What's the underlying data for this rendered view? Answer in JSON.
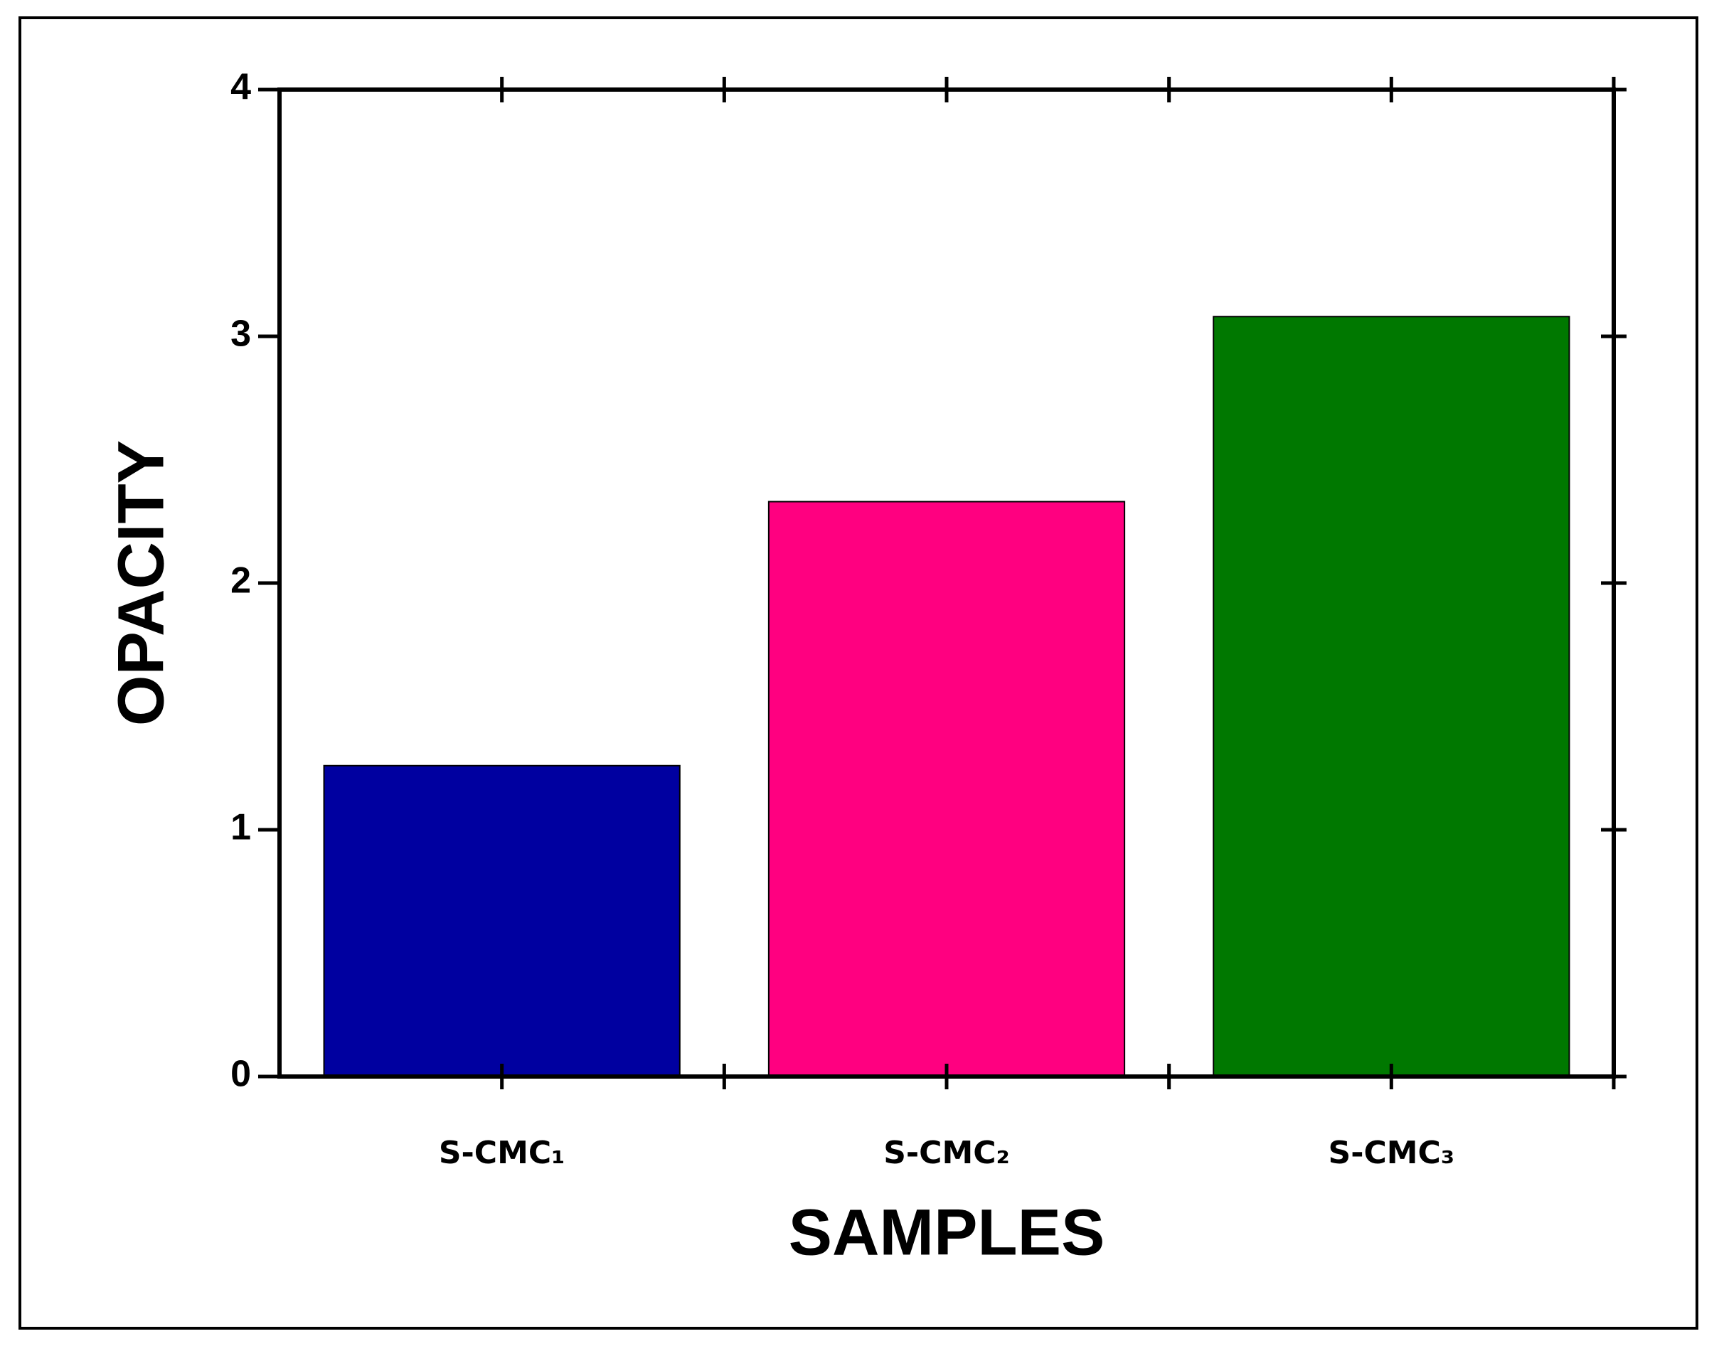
{
  "chart_data": {
    "type": "bar",
    "categories": [
      "S-CMC₁",
      "S-CMC₂",
      "S-CMC₃"
    ],
    "values": [
      1.26,
      2.33,
      3.08
    ],
    "colors": [
      "#0000a0",
      "#ff0080",
      "#007800"
    ],
    "x_label": "SAMPLES",
    "y_label": "OPACITY",
    "ylim": [
      0,
      4
    ],
    "yticks": [
      0,
      1,
      2,
      3,
      4
    ],
    "grid": false
  }
}
